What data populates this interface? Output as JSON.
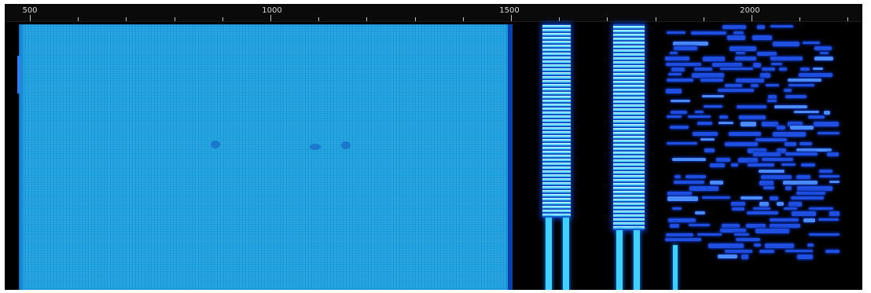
{
  "ruler": {
    "labels": [
      "500",
      "1000",
      "1500",
      "2000"
    ]
  },
  "colors": {
    "background": "#000000",
    "wide_signal": "#20a3df",
    "narrow_signal_core": "#c9f5ff",
    "narrow_signal_edge": "#0f55c8",
    "burst": "#1f4fe0",
    "carrier": "#3fd0ff",
    "ruler_text": "#d8d8d8"
  },
  "icons": {
    "waterfall": "spectrum-waterfall"
  }
}
